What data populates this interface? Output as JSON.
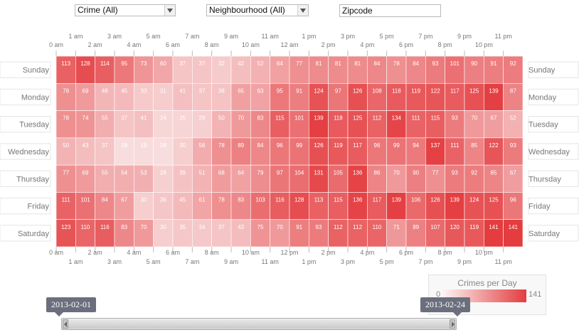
{
  "filters": {
    "crime_select": "Crime (All)",
    "neighbourhood_select": "Neighbourhood (All)",
    "zipcode_placeholder": "Zipcode"
  },
  "legend": {
    "title": "Crimes per Day",
    "min": "0",
    "max": "141"
  },
  "date_range": {
    "start": "2013-02-01",
    "end": "2013-02-24"
  },
  "colors": {
    "low": "#fbf5f5",
    "high": "#e43c3f"
  },
  "chart_data": {
    "type": "heatmap",
    "hours_top": [
      "0 am",
      "1 am",
      "2 am",
      "3 am",
      "4 am",
      "5 am",
      "6 am",
      "7 am",
      "8 am",
      "9 am",
      "10 am",
      "11 am",
      "12 am",
      "1 pm",
      "2 pm",
      "3 pm",
      "4 pm",
      "5 pm",
      "6 pm",
      "7 pm",
      "8 pm",
      "9 pm",
      "10 pm",
      "11 pm"
    ],
    "hours_bottom": [
      "0 am",
      "1 am",
      "2 am",
      "3 am",
      "4 am",
      "5 am",
      "6 am",
      "7 am",
      "8 am",
      "9 am",
      "10 am",
      "11 am",
      "12 pm",
      "1 pm",
      "2 pm",
      "3 pm",
      "4 pm",
      "5 pm",
      "6 pm",
      "7 pm",
      "8 pm",
      "9 pm",
      "10 pm",
      "11 pm"
    ],
    "days": [
      "Sunday",
      "Monday",
      "Tuesday",
      "Wednesday",
      "Thursday",
      "Friday",
      "Saturday"
    ],
    "value_range": [
      0,
      141
    ],
    "values": [
      [
        113,
        128,
        114,
        95,
        73,
        60,
        37,
        37,
        32,
        42,
        52,
        64,
        77,
        81,
        81,
        81,
        84,
        78,
        84,
        93,
        101,
        90,
        91,
        92
      ],
      [
        78,
        69,
        48,
        45,
        33,
        31,
        41,
        37,
        38,
        65,
        63,
        95,
        91,
        124,
        97,
        126,
        108,
        118,
        119,
        122,
        117,
        125,
        139,
        87
      ],
      [
        78,
        74,
        55,
        37,
        41,
        24,
        25,
        29,
        50,
        70,
        83,
        115,
        101,
        139,
        118,
        125,
        112,
        134,
        111,
        115,
        93,
        70,
        67,
        52
      ],
      [
        50,
        43,
        37,
        18,
        19,
        18,
        30,
        56,
        78,
        89,
        84,
        96,
        99,
        126,
        119,
        117,
        96,
        99,
        94,
        137,
        111,
        85,
        122,
        93
      ],
      [
        77,
        69,
        55,
        54,
        53,
        28,
        39,
        51,
        68,
        64,
        79,
        97,
        104,
        131,
        105,
        136,
        86,
        70,
        90,
        77,
        93,
        92,
        85,
        67
      ],
      [
        111,
        101,
        84,
        67,
        30,
        36,
        45,
        61,
        78,
        83,
        103,
        116,
        128,
        113,
        115,
        136,
        117,
        139,
        106,
        126,
        139,
        124,
        125,
        96
      ],
      [
        123,
        110,
        116,
        83,
        70,
        30,
        35,
        34,
        37,
        43,
        75,
        70,
        91,
        93,
        112,
        112,
        110,
        71,
        89,
        107,
        120,
        119,
        141,
        141
      ]
    ]
  }
}
